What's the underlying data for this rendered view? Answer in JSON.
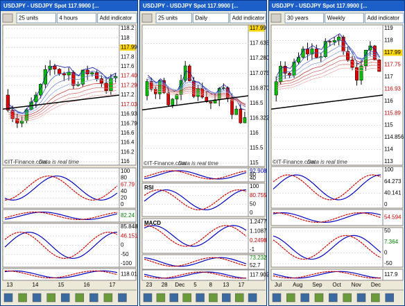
{
  "windows": [
    {
      "title": "USDJPY - USDJPY Spot 117.9900 [...",
      "units": "25 units",
      "timeframe": "4 hours",
      "button": "Add indicator",
      "watermark": "©IT-Finance.com",
      "realtime": "Data is real time",
      "x_labels": [
        "13",
        "14",
        "15",
        "16",
        "17"
      ],
      "panels": [
        {
          "labels": [
            {
              "text": "118.2"
            },
            {
              "text": "118"
            },
            {
              "text": "117.99",
              "bg": "#ffd700"
            },
            {
              "text": "117.8"
            },
            {
              "text": "117.6"
            },
            {
              "text": "117.40",
              "color": "#c00000"
            },
            {
              "text": "117.29",
              "color": "#c00000"
            },
            {
              "text": "117.2"
            },
            {
              "text": "117.03",
              "color": "#c00000"
            },
            {
              "text": "116.93"
            },
            {
              "text": "116.79"
            },
            {
              "text": "116.6"
            },
            {
              "text": "116.4"
            },
            {
              "text": "116.2"
            },
            {
              "text": "116"
            }
          ]
        },
        {
          "labels": [
            {
              "text": "100"
            },
            {
              "text": "80"
            },
            {
              "text": "67.79",
              "color": "#c00000"
            },
            {
              "text": "40"
            },
            {
              "text": "20"
            },
            {
              "text": "0"
            }
          ]
        },
        {
          "labels": [
            {
              "text": "82.24",
              "color": "#008000"
            }
          ]
        },
        {
          "labels": [
            {
              "text": "85.848"
            },
            {
              "text": "46.151",
              "color": "#c00000"
            },
            {
              "text": "0"
            },
            {
              "text": "-50"
            },
            {
              "text": "-100"
            }
          ]
        },
        {
          "labels": [
            {
              "text": "118.01"
            }
          ]
        }
      ]
    },
    {
      "title": "USDJPY - USDJPY Spot 117.9900 [...",
      "units": "25 units",
      "timeframe": "Daily",
      "button": "Add indicator",
      "watermark": "©IT-Finance.com",
      "realtime": "Data is real time",
      "x_labels": [
        "23",
        "28",
        "Dec",
        "5",
        "8",
        "13",
        "17"
      ],
      "panels": [
        {
          "labels": [
            {
              "text": "117.99",
              "bg": "#ffd700"
            },
            {
              "text": "117.635"
            },
            {
              "text": "117.280"
            },
            {
              "text": "117.075"
            },
            {
              "text": "116.870"
            },
            {
              "text": "116.5"
            },
            {
              "text": "116.322"
            },
            {
              "text": "116"
            },
            {
              "text": "115.5"
            },
            {
              "text": "115"
            }
          ]
        },
        {
          "labels": [
            {
              "text": "92.908",
              "color": "#0000c0"
            },
            {
              "text": "80"
            },
            {
              "text": "40"
            }
          ]
        },
        {
          "label": "RSI",
          "labels": [
            {
              "text": "100"
            },
            {
              "text": "80.755",
              "color": "#c00000"
            },
            {
              "text": "50"
            },
            {
              "text": "0"
            }
          ]
        },
        {
          "label": "MACD",
          "labels": [
            {
              "text": "1.2477"
            },
            {
              "text": "1.1087"
            },
            {
              "text": "0.2498",
              "color": "#c00000"
            },
            {
              "text": "-1"
            }
          ]
        },
        {
          "labels": [
            {
              "text": "73.232",
              "color": "#008000"
            },
            {
              "text": "52.7"
            }
          ]
        },
        {
          "labels": [
            {
              "text": "117.902"
            }
          ]
        }
      ]
    },
    {
      "title": "USDJPY - USDJPY Spot 117.9900 [...",
      "units": "30 years",
      "timeframe": "Weekly",
      "button": "Add indicator",
      "watermark": "©IT-Finance.com",
      "realtime": "Data is real time",
      "x_labels": [
        "Jul",
        "Aug",
        "Sep",
        "Oct",
        "Nov",
        "Dec"
      ],
      "panels": [
        {
          "labels": [
            {
              "text": "119"
            },
            {
              "text": "118"
            },
            {
              "text": "117.99",
              "bg": "#ffd700"
            },
            {
              "text": "117.75",
              "color": "#c00000"
            },
            {
              "text": "117"
            },
            {
              "text": "116.93",
              "color": "#c00000"
            },
            {
              "text": "116"
            },
            {
              "text": "115.89",
              "color": "#c00000"
            },
            {
              "text": "115"
            },
            {
              "text": "114.856"
            },
            {
              "text": "114"
            },
            {
              "text": "113"
            }
          ]
        },
        {
          "labels": [
            {
              "text": "100"
            },
            {
              "text": "64.273"
            },
            {
              "text": "40.141"
            },
            {
              "text": "0"
            }
          ]
        },
        {
          "labels": [
            {
              "text": "54.594",
              "color": "#c00000"
            }
          ]
        },
        {
          "labels": [
            {
              "text": "50"
            },
            {
              "text": "7.364",
              "color": "#008000"
            },
            {
              "text": "0"
            },
            {
              "text": "-50"
            }
          ]
        },
        {
          "labels": [
            {
              "text": "117.9"
            }
          ]
        }
      ]
    }
  ]
}
